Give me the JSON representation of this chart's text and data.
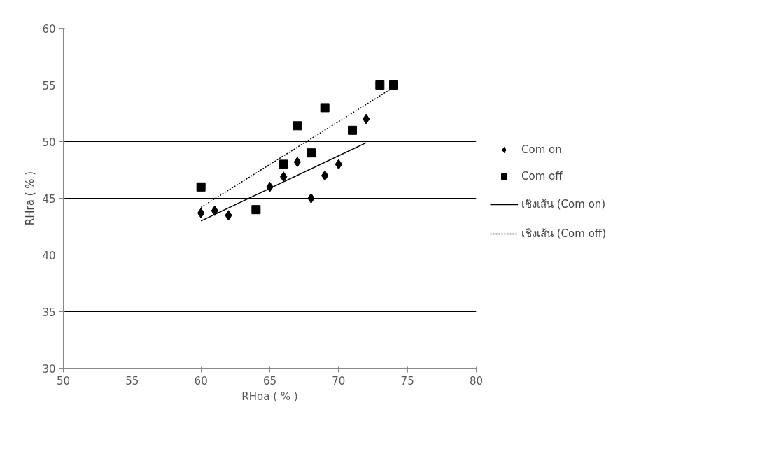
{
  "chart_data": {
    "type": "scatter",
    "xlabel": "RHoa ( % )",
    "ylabel": "RHra ( % )",
    "xlim": [
      50,
      80
    ],
    "xticks": [
      50,
      55,
      60,
      65,
      70,
      75,
      80
    ],
    "ylim": [
      30,
      60
    ],
    "yticks": [
      30,
      35,
      40,
      45,
      50,
      55,
      60
    ],
    "grid": "y",
    "legend": "right",
    "series": [
      {
        "name": "Com on",
        "color": "#000000",
        "marker": "diamond",
        "x": [
          60,
          61,
          62,
          65,
          66,
          67,
          68,
          69,
          70,
          72
        ],
        "values": [
          43.7,
          43.9,
          43.5,
          46.0,
          46.9,
          48.2,
          45.0,
          47.0,
          48.0,
          52.0
        ]
      },
      {
        "name": "Com off",
        "color": "#000000",
        "marker": "square",
        "x": [
          60,
          64,
          66,
          67,
          68,
          69,
          71,
          73,
          74
        ],
        "values": [
          46.0,
          44.0,
          48.0,
          51.4,
          49.0,
          53.0,
          51.0,
          55.0,
          55.0
        ]
      },
      {
        "name": "เชิงเส้น (Com on)",
        "type": "line",
        "color": "#000000",
        "line_style": "solid",
        "marker": "none",
        "x": [
          60,
          72
        ],
        "values": [
          43.0,
          49.9
        ]
      },
      {
        "name": "เชิงเส้น (Com off)",
        "type": "line",
        "color": "#000000",
        "line_style": "dotted",
        "marker": "none",
        "x": [
          60,
          74
        ],
        "values": [
          44.2,
          54.8
        ]
      }
    ]
  }
}
